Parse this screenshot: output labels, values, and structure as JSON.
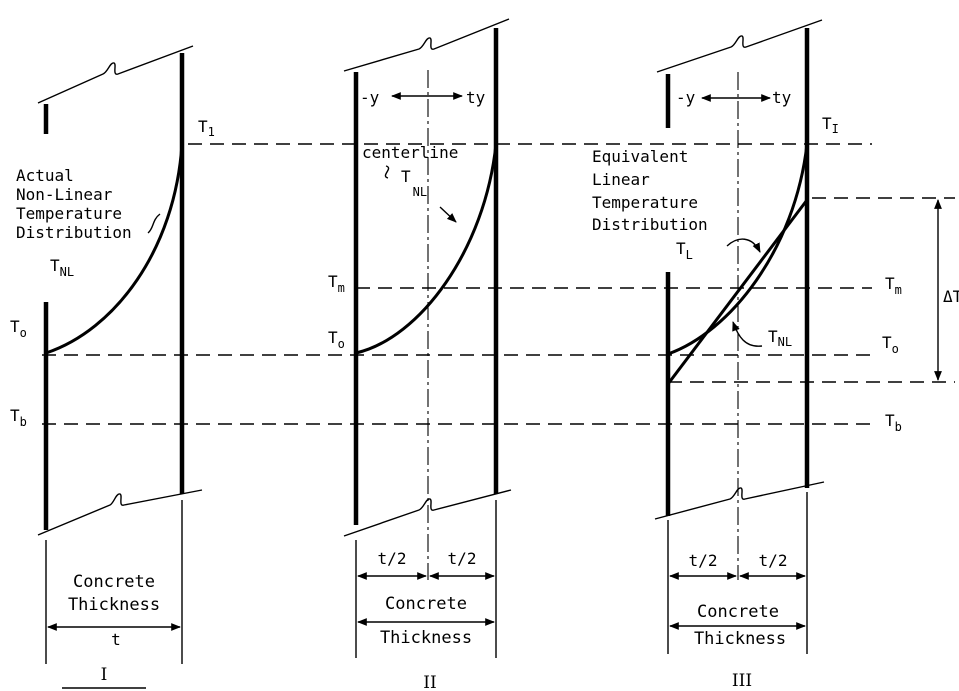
{
  "panel_i": {
    "label_t1_main": "T",
    "label_t1_sub": "1",
    "annotation_lines": [
      "Actual",
      "Non-Linear",
      "Temperature",
      "Distribution"
    ],
    "label_tnl_main": "T",
    "label_tnl_sub": "NL",
    "label_to_main": "T",
    "label_to_sub": "o",
    "label_tb_main": "T",
    "label_tb_sub": "b",
    "thickness_lines": [
      "Concrete",
      "Thickness"
    ],
    "dimension_label": "t",
    "roman": "I"
  },
  "panel_ii": {
    "neg_y": "-y",
    "pos_y": "ty",
    "centerline": "centerline",
    "label_tnl_main": "T",
    "label_tnl_sub": "NL",
    "label_tm_main": "T",
    "label_tm_sub": "m",
    "label_to_main": "T",
    "label_to_sub": "o",
    "half_left": "t/2",
    "half_right": "t/2",
    "thickness_lines": [
      "Concrete",
      "Thickness"
    ],
    "roman": "II"
  },
  "panel_iii": {
    "neg_y": "-y",
    "pos_y": "ty",
    "label_ti_main": "T",
    "label_ti_sub": "I",
    "annotation_lines": [
      "Equivalent",
      "Linear",
      "Temperature",
      "Distribution"
    ],
    "label_tl_main": "T",
    "label_tl_sub": "L",
    "label_tnl_main": "T",
    "label_tnl_sub": "NL",
    "label_tm_main": "T",
    "label_tm_sub": "m",
    "label_to_main": "T",
    "label_to_sub": "o",
    "label_tb_main": "T",
    "label_tb_sub": "b",
    "delta_label": "ΔT",
    "half_left": "t/2",
    "half_right": "t/2",
    "thickness_lines": [
      "Concrete",
      "Thickness"
    ],
    "roman": "III"
  }
}
